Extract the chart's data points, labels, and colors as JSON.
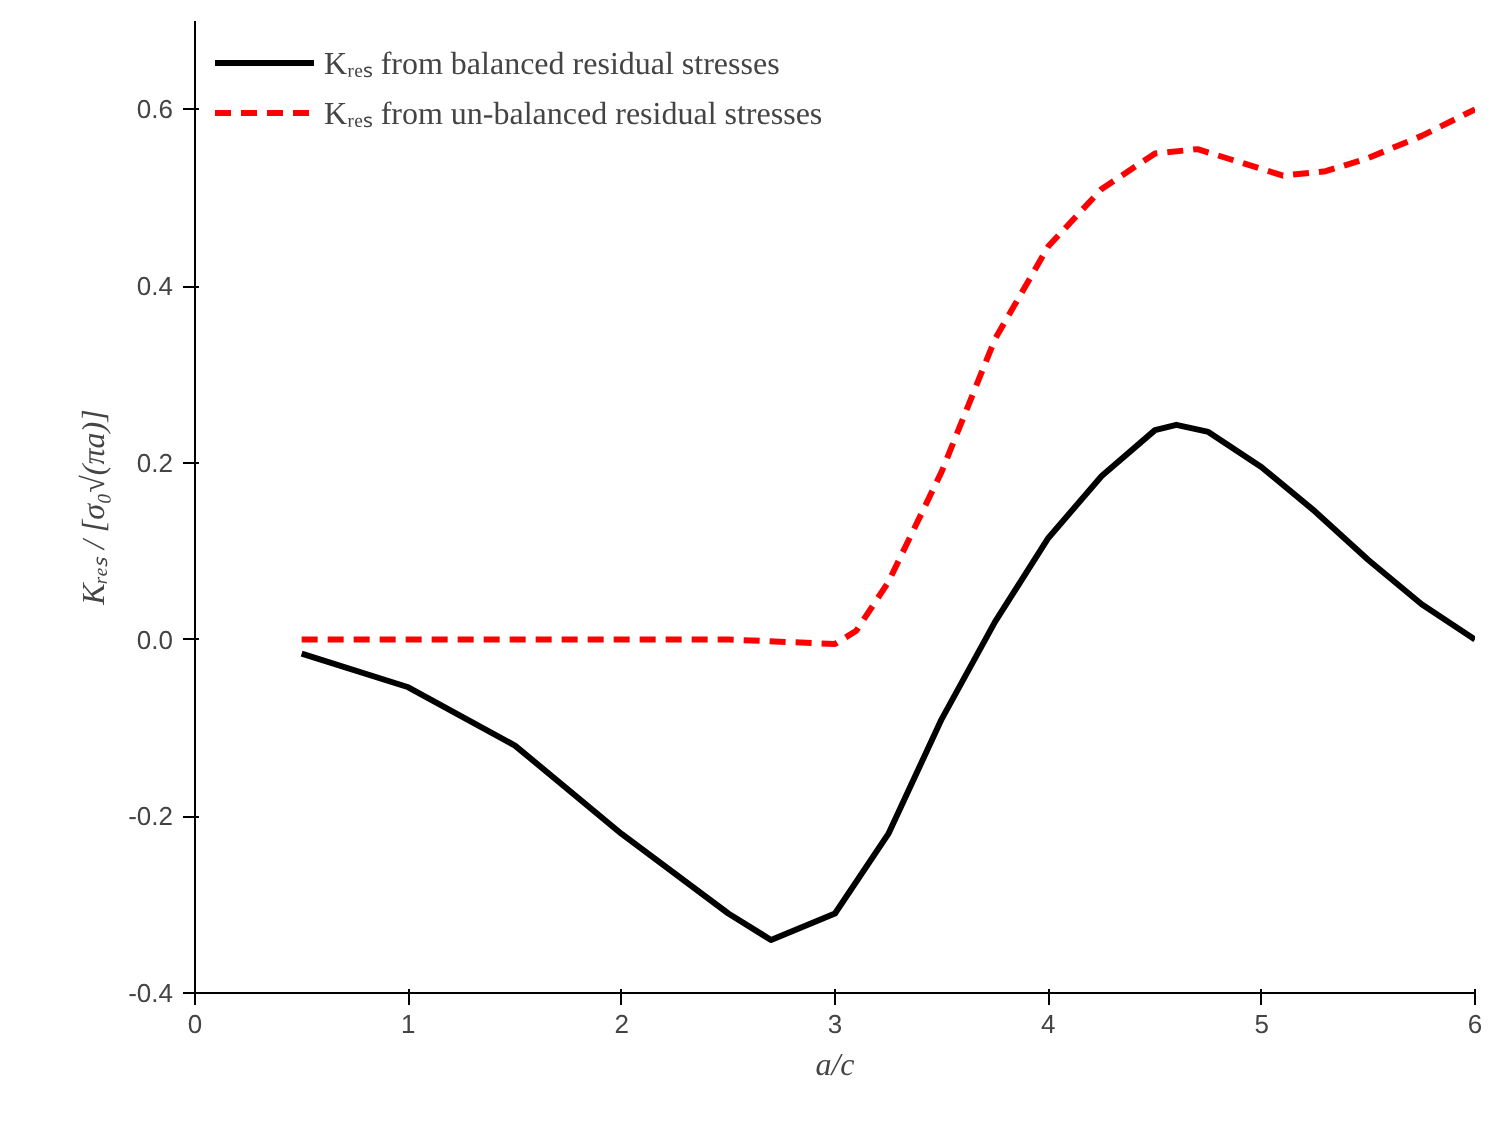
{
  "chart_data": {
    "type": "line",
    "xlabel": "a/c",
    "ylabel": "Kᵣₑₛ / [σ₀√(πa)]",
    "xlim": [
      0,
      6
    ],
    "xticks": [
      0,
      1,
      2,
      3,
      4,
      5,
      6
    ],
    "ylim": [
      -0.4,
      0.7
    ],
    "yticks": [
      {
        "value": -0.4,
        "label": "-0.4"
      },
      {
        "value": -0.2,
        "label": "-0.2"
      },
      {
        "value": 0,
        "label": "0.0"
      },
      {
        "value": 0.2,
        "label": "0.2"
      },
      {
        "value": 0.4,
        "label": "0.4"
      },
      {
        "value": 0.6,
        "label": "0.6"
      }
    ],
    "grid": false,
    "legend": "top left",
    "series": [
      {
        "name": "Kᵣₑₛ from balanced residual stresses",
        "color": "#000000",
        "line_style": "solid",
        "x": [
          0.5,
          1.0,
          1.5,
          2.0,
          2.5,
          2.7,
          3.0,
          3.25,
          3.5,
          3.75,
          4.0,
          4.25,
          4.5,
          4.6,
          4.75,
          5.0,
          5.25,
          5.5,
          5.75,
          6.0
        ],
        "values": [
          -0.016,
          -0.054,
          -0.12,
          -0.22,
          -0.31,
          -0.34,
          -0.31,
          -0.22,
          -0.09,
          0.02,
          0.115,
          0.185,
          0.237,
          0.243,
          0.235,
          0.195,
          0.145,
          0.09,
          0.04,
          0.0
        ]
      },
      {
        "name": "Kᵣₑₛ from un-balanced residual stresses",
        "color": "#ff0000",
        "line_style": "dashed",
        "x": [
          0.5,
          1.0,
          1.5,
          2.0,
          2.5,
          3.0,
          3.1,
          3.25,
          3.5,
          3.75,
          4.0,
          4.25,
          4.5,
          4.7,
          4.9,
          5.1,
          5.3,
          5.5,
          5.75,
          6.0
        ],
        "values": [
          0,
          0,
          0,
          0,
          0,
          -0.005,
          0.01,
          0.065,
          0.19,
          0.34,
          0.445,
          0.51,
          0.55,
          0.555,
          0.54,
          0.525,
          0.53,
          0.545,
          0.57,
          0.6
        ]
      }
    ]
  }
}
